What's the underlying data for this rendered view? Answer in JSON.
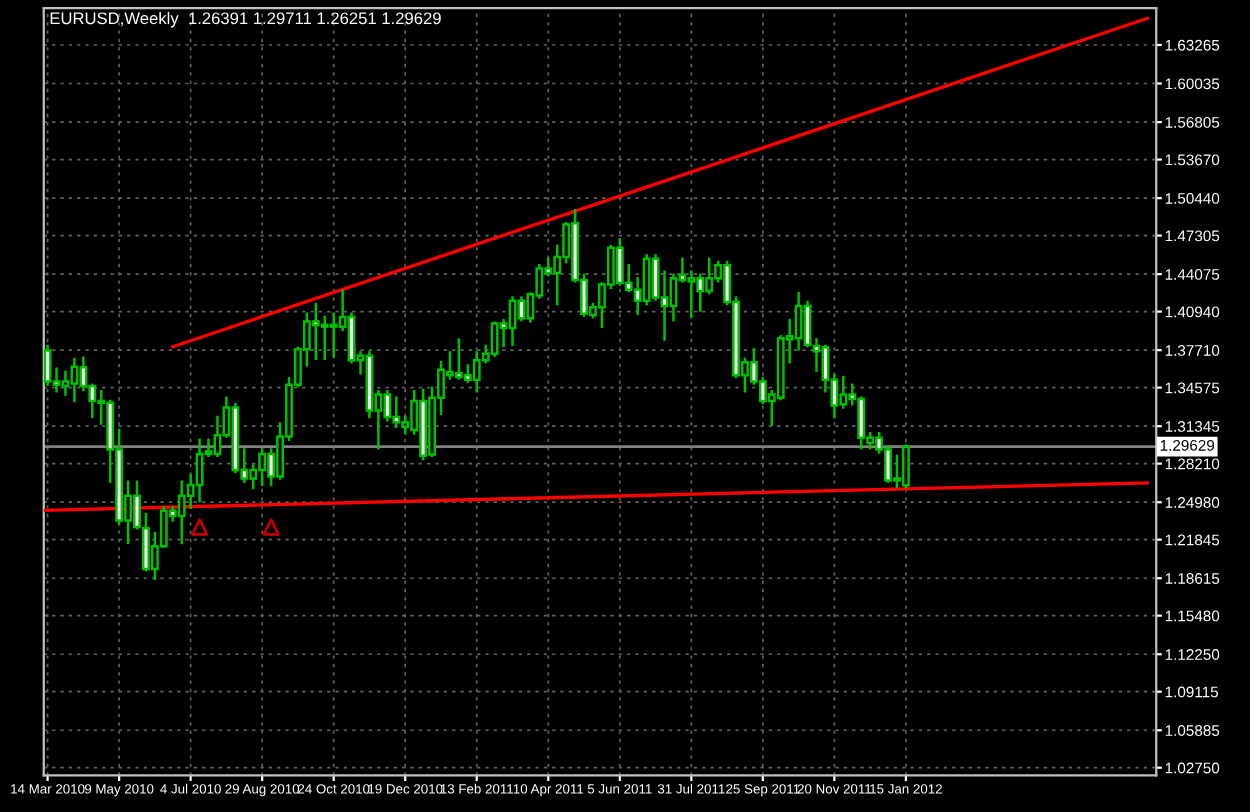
{
  "chart_data": {
    "type": "candlestick",
    "title": "EURUSD,Weekly  1.26391 1.29711 1.26251 1.29629",
    "xlim": [
      "2010-03-11",
      "2012-07-29"
    ],
    "ylim": [
      1.021,
      1.6635
    ],
    "xticks": [
      {
        "value": "2010-03-14",
        "label": "14 Mar 2010"
      },
      {
        "value": "2010-05-09",
        "label": "9 May 2010"
      },
      {
        "value": "2010-07-04",
        "label": "4 Jul 2010"
      },
      {
        "value": "2010-08-29",
        "label": "29 Aug 2010"
      },
      {
        "value": "2010-10-24",
        "label": "24 Oct 2010"
      },
      {
        "value": "2010-12-19",
        "label": "19 Dec 2010"
      },
      {
        "value": "2011-02-13",
        "label": "13 Feb 2011"
      },
      {
        "value": "2011-04-10",
        "label": "10 Apr 2011"
      },
      {
        "value": "2011-06-05",
        "label": "5 Jun 2011"
      },
      {
        "value": "2011-07-31",
        "label": "31 Jul 2011"
      },
      {
        "value": "2011-09-25",
        "label": "25 Sep 2011"
      },
      {
        "value": "2011-11-20",
        "label": "20 Nov 2011"
      },
      {
        "value": "2012-01-15",
        "label": "15 Jan 2012"
      }
    ],
    "yticks": [
      {
        "value": 1.63265,
        "label": "1.63265"
      },
      {
        "value": 1.60035,
        "label": "1.60035"
      },
      {
        "value": 1.56805,
        "label": "1.56805"
      },
      {
        "value": 1.5367,
        "label": "1.53670"
      },
      {
        "value": 1.5044,
        "label": "1.50440"
      },
      {
        "value": 1.47305,
        "label": "1.47305"
      },
      {
        "value": 1.44075,
        "label": "1.44075"
      },
      {
        "value": 1.4094,
        "label": "1.40940"
      },
      {
        "value": 1.3771,
        "label": "1.37710"
      },
      {
        "value": 1.34575,
        "label": "1.34575"
      },
      {
        "value": 1.31345,
        "label": "1.31345"
      },
      {
        "value": 1.2821,
        "label": "1.28210"
      },
      {
        "value": 1.2498,
        "label": "1.24980"
      },
      {
        "value": 1.21845,
        "label": "1.21845"
      },
      {
        "value": 1.18615,
        "label": "1.18615"
      },
      {
        "value": 1.1548,
        "label": "1.15480"
      },
      {
        "value": 1.1225,
        "label": "1.12250"
      },
      {
        "value": 1.09115,
        "label": "1.09115"
      },
      {
        "value": 1.05885,
        "label": "1.05885"
      },
      {
        "value": 1.0275,
        "label": "1.02750"
      }
    ],
    "grid": true,
    "legend": false,
    "ref_lines": [
      {
        "axis": "y",
        "value": 1.29629,
        "label": "1.29629",
        "color": "#808080"
      }
    ],
    "series": [
      {
        "type": "line",
        "color": "#ff0000",
        "x": [
          "2010-06-20",
          "2012-07-22"
        ],
        "values": [
          1.38,
          1.655
        ]
      },
      {
        "type": "line",
        "color": "#ff0000",
        "x": [
          "2010-03-11",
          "2012-07-22"
        ],
        "values": [
          1.243,
          1.266
        ]
      },
      {
        "type": "scatter",
        "marker": "triangle",
        "color": "#c00000",
        "x": [
          "2010-07-11",
          "2010-09-05"
        ],
        "values": [
          1.229,
          1.229
        ]
      },
      {
        "color": "#00c000",
        "x": [
          "2010-03-14",
          "2010-03-21",
          "2010-03-28",
          "2010-04-04",
          "2010-04-11",
          "2010-04-18",
          "2010-04-25",
          "2010-05-02",
          "2010-05-09",
          "2010-05-16",
          "2010-05-23",
          "2010-05-30",
          "2010-06-06",
          "2010-06-13",
          "2010-06-20",
          "2010-06-27",
          "2010-07-04",
          "2010-07-11",
          "2010-07-18",
          "2010-07-25",
          "2010-08-01",
          "2010-08-08",
          "2010-08-15",
          "2010-08-22",
          "2010-08-29",
          "2010-09-05",
          "2010-09-12",
          "2010-09-19",
          "2010-09-26",
          "2010-10-03",
          "2010-10-10",
          "2010-10-17",
          "2010-10-24",
          "2010-10-31",
          "2010-11-07",
          "2010-11-14",
          "2010-11-21",
          "2010-11-28",
          "2010-12-05",
          "2010-12-12",
          "2010-12-19",
          "2010-12-26",
          "2011-01-02",
          "2011-01-09",
          "2011-01-16",
          "2011-01-23",
          "2011-01-30",
          "2011-02-06",
          "2011-02-13",
          "2011-02-20",
          "2011-02-27",
          "2011-03-06",
          "2011-03-13",
          "2011-03-20",
          "2011-03-27",
          "2011-04-03",
          "2011-04-10",
          "2011-04-17",
          "2011-04-24",
          "2011-05-01",
          "2011-05-08",
          "2011-05-15",
          "2011-05-22",
          "2011-05-29",
          "2011-06-05",
          "2011-06-12",
          "2011-06-19",
          "2011-06-26",
          "2011-07-03",
          "2011-07-10",
          "2011-07-17",
          "2011-07-24",
          "2011-07-31",
          "2011-08-07",
          "2011-08-14",
          "2011-08-21",
          "2011-08-28",
          "2011-09-04",
          "2011-09-11",
          "2011-09-18",
          "2011-09-25",
          "2011-10-02",
          "2011-10-09",
          "2011-10-16",
          "2011-10-23",
          "2011-10-30",
          "2011-11-06",
          "2011-11-13",
          "2011-11-20",
          "2011-11-27",
          "2011-12-04",
          "2011-12-11",
          "2011-12-18",
          "2011-12-25",
          "2012-01-01",
          "2012-01-08",
          "2012-01-15"
        ],
        "ohlc": [
          [
            1.3768,
            1.3806,
            1.3481,
            1.3508
          ],
          [
            1.3508,
            1.3616,
            1.3427,
            1.3481
          ],
          [
            1.347,
            1.3589,
            1.34,
            1.3508
          ],
          [
            1.3492,
            1.3698,
            1.3346,
            1.3633
          ],
          [
            1.3627,
            1.3708,
            1.3438,
            1.347
          ],
          [
            1.347,
            1.3481,
            1.3211,
            1.3346
          ],
          [
            1.3346,
            1.3427,
            1.3157,
            1.333
          ],
          [
            1.333,
            1.3346,
            1.267,
            1.294
          ],
          [
            1.294,
            1.3102,
            1.2318,
            1.2345
          ],
          [
            1.2345,
            1.267,
            1.2156,
            1.2551
          ],
          [
            1.2551,
            1.267,
            1.228,
            1.2291
          ],
          [
            1.228,
            1.2399,
            1.1928,
            1.1939
          ],
          [
            1.1939,
            1.2237,
            1.1858,
            1.2129
          ],
          [
            1.2129,
            1.2453,
            1.2129,
            1.2426
          ],
          [
            1.2426,
            1.2453,
            1.2345,
            1.2383
          ],
          [
            1.2383,
            1.267,
            1.2156,
            1.2551
          ],
          [
            1.2551,
            1.2724,
            1.2453,
            1.2643
          ],
          [
            1.2643,
            1.3021,
            1.2507,
            1.2902
          ],
          [
            1.2902,
            1.3021,
            1.2886,
            1.2924
          ],
          [
            1.2902,
            1.3211,
            1.2886,
            1.3059
          ],
          [
            1.3059,
            1.3373,
            1.3048,
            1.3292
          ],
          [
            1.3292,
            1.3319,
            1.2751,
            1.2767
          ],
          [
            1.2767,
            1.294,
            1.267,
            1.2697
          ],
          [
            1.2697,
            1.2805,
            1.2616,
            1.2767
          ],
          [
            1.2767,
            1.294,
            1.2643,
            1.2902
          ],
          [
            1.2902,
            1.294,
            1.2643,
            1.2713
          ],
          [
            1.2713,
            1.3157,
            1.2697,
            1.3048
          ],
          [
            1.3048,
            1.3535,
            1.3021,
            1.3481
          ],
          [
            1.3481,
            1.379,
            1.347,
            1.3779
          ],
          [
            1.3779,
            1.4076,
            1.3643,
            1.4011
          ],
          [
            1.4011,
            1.4157,
            1.3698,
            1.3979
          ],
          [
            1.3968,
            1.4049,
            1.3698,
            1.3984
          ],
          [
            1.3984,
            1.4076,
            1.3725,
            1.3968
          ],
          [
            1.3968,
            1.4266,
            1.3941,
            1.4049
          ],
          [
            1.4049,
            1.4076,
            1.367,
            1.3687
          ],
          [
            1.3687,
            1.3752,
            1.3578,
            1.3725
          ],
          [
            1.3725,
            1.3752,
            1.3211,
            1.3265
          ],
          [
            1.3265,
            1.3427,
            1.2951,
            1.34
          ],
          [
            1.34,
            1.3427,
            1.3184,
            1.3211
          ],
          [
            1.3211,
            1.3373,
            1.3129,
            1.3167
          ],
          [
            1.3129,
            1.3211,
            1.3075,
            1.3167
          ],
          [
            1.3102,
            1.3427,
            1.3075,
            1.3346
          ],
          [
            1.3346,
            1.3438,
            1.2859,
            1.2886
          ],
          [
            1.2897,
            1.3454,
            1.2886,
            1.3373
          ],
          [
            1.3373,
            1.367,
            1.3238,
            1.3606
          ],
          [
            1.3562,
            1.3752,
            1.3535,
            1.3589
          ],
          [
            1.3578,
            1.386,
            1.3535,
            1.3546
          ],
          [
            1.3562,
            1.3643,
            1.3508,
            1.3524
          ],
          [
            1.3524,
            1.3752,
            1.3427,
            1.3687
          ],
          [
            1.3687,
            1.3806,
            1.367,
            1.3741
          ],
          [
            1.3741,
            1.4,
            1.3725,
            1.3995
          ],
          [
            1.3995,
            1.4022,
            1.3806,
            1.3957
          ],
          [
            1.3957,
            1.4211,
            1.3817,
            1.4184
          ],
          [
            1.4184,
            1.4211,
            1.4022,
            1.4038
          ],
          [
            1.4038,
            1.4245,
            1.4011,
            1.4239
          ],
          [
            1.4228,
            1.4482,
            1.4211,
            1.4455
          ],
          [
            1.4455,
            1.4536,
            1.4401,
            1.4417
          ],
          [
            1.4417,
            1.4644,
            1.4157,
            1.4552
          ],
          [
            1.4552,
            1.4834,
            1.4509,
            1.4823
          ],
          [
            1.4834,
            1.4942,
            1.4347,
            1.4358
          ],
          [
            1.4358,
            1.4401,
            1.406,
            1.4076
          ],
          [
            1.4065,
            1.4157,
            1.4049,
            1.413
          ],
          [
            1.413,
            1.433,
            1.3968,
            1.432
          ],
          [
            1.432,
            1.4644,
            1.4293,
            1.4628
          ],
          [
            1.4628,
            1.4698,
            1.432,
            1.4336
          ],
          [
            1.4336,
            1.4482,
            1.4266,
            1.4276
          ],
          [
            1.4276,
            1.4374,
            1.4076,
            1.4184
          ],
          [
            1.4184,
            1.4563,
            1.4157,
            1.4536
          ],
          [
            1.4536,
            1.4563,
            1.4195,
            1.4211
          ],
          [
            1.4211,
            1.4428,
            1.386,
            1.4141
          ],
          [
            1.4141,
            1.4401,
            1.4022,
            1.4374
          ],
          [
            1.4401,
            1.4536,
            1.4347,
            1.4358
          ],
          [
            1.4347,
            1.4428,
            1.4049,
            1.4374
          ],
          [
            1.4374,
            1.4401,
            1.4103,
            1.4266
          ],
          [
            1.4266,
            1.4536,
            1.4249,
            1.4374
          ],
          [
            1.4374,
            1.4509,
            1.4347,
            1.4482
          ],
          [
            1.4482,
            1.4509,
            1.4157,
            1.4174
          ],
          [
            1.4174,
            1.4211,
            1.3546,
            1.3562
          ],
          [
            1.3562,
            1.3698,
            1.3427,
            1.367
          ],
          [
            1.367,
            1.3779,
            1.3492,
            1.3508
          ],
          [
            1.3508,
            1.3535,
            1.333,
            1.3346
          ],
          [
            1.3346,
            1.3427,
            1.3146,
            1.34
          ],
          [
            1.3373,
            1.3887,
            1.3362,
            1.3871
          ],
          [
            1.386,
            1.4022,
            1.367,
            1.3887
          ],
          [
            1.3871,
            1.4249,
            1.3779,
            1.4141
          ],
          [
            1.4141,
            1.4174,
            1.3806,
            1.3817
          ],
          [
            1.3806,
            1.386,
            1.36,
            1.3762
          ],
          [
            1.3795,
            1.3806,
            1.3427,
            1.3524
          ],
          [
            1.3524,
            1.3562,
            1.3211,
            1.3308
          ],
          [
            1.3319,
            1.3546,
            1.3292,
            1.34
          ],
          [
            1.34,
            1.3481,
            1.3319,
            1.3362
          ],
          [
            1.3362,
            1.3373,
            1.2951,
            1.3037
          ],
          [
            1.2994,
            1.3075,
            1.2951,
            1.3037
          ],
          [
            1.3037,
            1.3075,
            1.2913,
            1.294
          ],
          [
            1.294,
            1.2967,
            1.267,
            1.268
          ],
          [
            1.268,
            1.2886,
            1.2626,
            1.2697
          ],
          [
            1.26391,
            1.29711,
            1.26251,
            1.29629
          ]
        ]
      }
    ]
  }
}
